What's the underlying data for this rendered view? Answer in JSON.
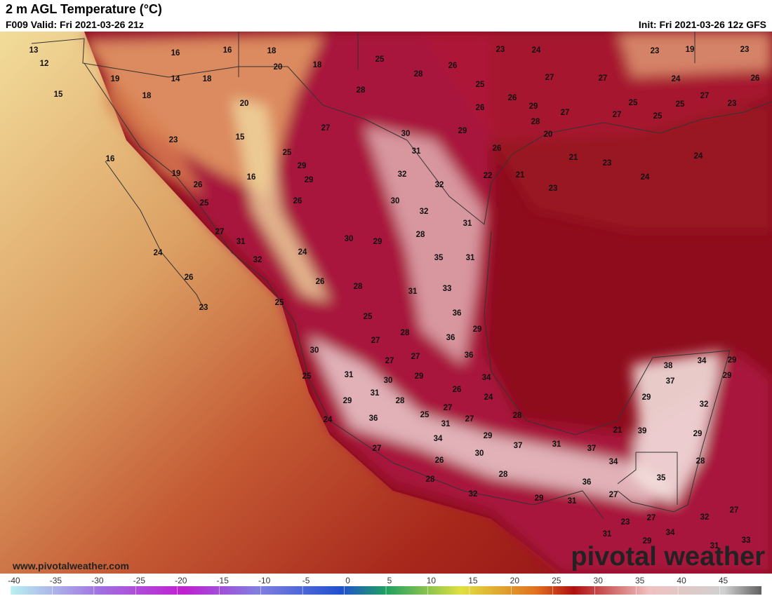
{
  "header": {
    "title": "2 m AGL Temperature (°C)",
    "valid": "F009 Valid: Fri 2021-03-26 21z",
    "init": "Init: Fri 2021-03-26 12z GFS"
  },
  "map": {
    "labels": [
      13,
      12,
      15,
      19,
      18,
      16,
      16,
      18,
      14,
      18,
      20,
      18,
      25,
      28,
      26,
      23,
      24,
      23,
      19,
      23,
      27,
      27,
      24,
      26,
      28,
      25,
      26,
      29,
      26,
      27,
      27,
      25,
      27,
      25,
      25,
      23,
      20,
      27,
      30,
      29,
      28,
      20,
      15,
      23,
      25,
      31,
      26,
      21,
      24,
      16,
      29,
      29,
      32,
      32,
      22,
      21,
      23,
      24,
      19,
      26,
      16,
      23,
      25,
      26,
      30,
      32,
      31,
      27,
      31,
      30,
      29,
      28,
      24,
      32,
      24,
      35,
      31,
      26,
      26,
      28,
      31,
      33,
      23,
      25,
      36,
      25,
      28,
      29,
      27,
      36,
      30,
      27,
      27,
      36,
      38,
      34,
      29,
      25,
      31,
      30,
      29,
      34,
      37,
      29,
      26,
      31,
      24,
      29,
      32,
      29,
      28,
      27,
      24,
      36,
      25,
      31,
      27,
      28,
      21,
      39,
      29,
      34,
      29,
      37,
      31,
      37,
      27,
      30,
      34,
      28,
      26,
      35,
      28,
      28,
      36,
      27,
      32,
      29,
      31,
      23,
      27,
      32,
      27,
      31,
      34,
      29,
      33,
      31
    ]
  },
  "footer": {
    "website": "www.pivotalweather.com",
    "brand": "pivotal weather"
  },
  "colorbar": {
    "range": [
      -40,
      50
    ],
    "ticks": [
      -40,
      -35,
      -30,
      -25,
      -20,
      -15,
      -10,
      -5,
      0,
      5,
      10,
      15,
      20,
      25,
      30,
      35,
      40,
      45
    ]
  }
}
